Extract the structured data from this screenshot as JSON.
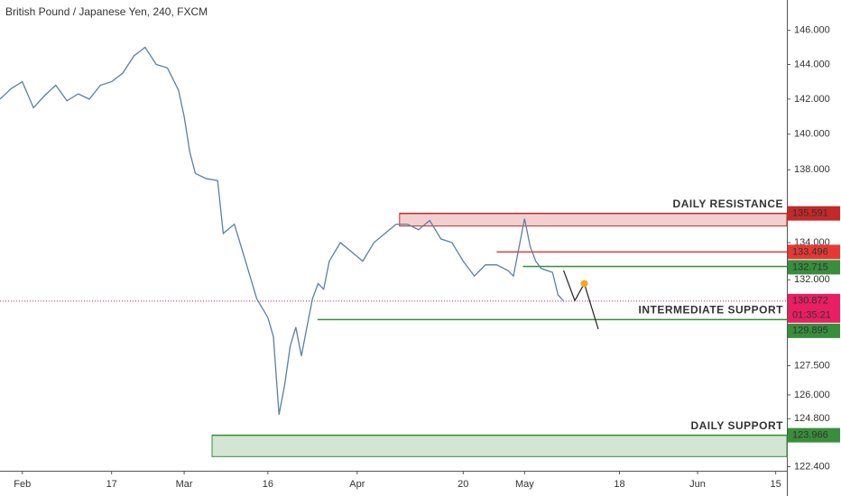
{
  "chart_data": {
    "type": "line",
    "title": "British Pound / Japanese Yen, 240, FXCM",
    "log": true,
    "xlim": [
      -4,
      137
    ],
    "ylim": [
      122.2,
      147.8
    ],
    "yticks": [
      {
        "value": 146,
        "label": "146.000"
      },
      {
        "value": 144,
        "label": "144.000"
      },
      {
        "value": 142,
        "label": "142.000"
      },
      {
        "value": 140,
        "label": "140.000"
      },
      {
        "value": 138,
        "label": "138.000"
      },
      {
        "value": 134,
        "label": "134.000"
      },
      {
        "value": 132,
        "label": "132.000"
      },
      {
        "value": 127.5,
        "label": "127.500"
      },
      {
        "value": 126,
        "label": "126.000"
      },
      {
        "value": 124.8,
        "label": "124.800"
      },
      {
        "value": 122.4,
        "label": "122.400"
      }
    ],
    "xticks": [
      {
        "value": 0,
        "label": "Feb"
      },
      {
        "value": 16,
        "label": "17"
      },
      {
        "value": 29,
        "label": "Mar"
      },
      {
        "value": 44,
        "label": "16"
      },
      {
        "value": 60,
        "label": "Apr"
      },
      {
        "value": 79,
        "label": "20"
      },
      {
        "value": 90,
        "label": "May"
      },
      {
        "value": 107,
        "label": "18"
      },
      {
        "value": 121,
        "label": "Jun"
      },
      {
        "value": 135,
        "label": "15"
      }
    ],
    "color": "#5b7fa6",
    "x": [
      -4,
      -2,
      0,
      2,
      4,
      6,
      8,
      10,
      12,
      14,
      16,
      18,
      20,
      22,
      24,
      26,
      28,
      29,
      30,
      31,
      33,
      35,
      36,
      38,
      40,
      42,
      44,
      45,
      46,
      47,
      48,
      49,
      50,
      51,
      52,
      53,
      54,
      55,
      57,
      59,
      61,
      63,
      65,
      67,
      69,
      71,
      73,
      75,
      77,
      79,
      81,
      83,
      85,
      87,
      88,
      90,
      91,
      92,
      93,
      95,
      96,
      97
    ],
    "values": [
      142.0,
      142.6,
      143.0,
      141.5,
      142.2,
      142.8,
      141.9,
      142.3,
      142.0,
      142.8,
      143.0,
      143.5,
      144.5,
      145.0,
      144.0,
      143.8,
      142.5,
      141.0,
      139.0,
      137.8,
      137.5,
      137.4,
      134.5,
      135.0,
      133.0,
      131.0,
      130.0,
      129.0,
      125.0,
      126.5,
      128.5,
      129.5,
      128.0,
      129.5,
      131.0,
      131.8,
      131.5,
      133.0,
      134.0,
      133.5,
      133.0,
      134.0,
      134.5,
      135.0,
      135.0,
      134.7,
      135.2,
      134.2,
      134.0,
      133.0,
      132.2,
      132.8,
      132.8,
      132.5,
      132.2,
      135.3,
      133.8,
      133.0,
      132.6,
      132.4,
      131.2,
      130.872
    ],
    "levels": [
      {
        "value": 135.591,
        "color": "#c62828",
        "x0": 67.6,
        "zone": 134.9,
        "text": "DAILY RESISTANCE"
      },
      {
        "value": 133.496,
        "color": "#e53935",
        "x0": 85
      },
      {
        "value": 132.715,
        "color": "#388e3c",
        "x0": 89.7
      },
      {
        "value": 129.895,
        "color": "#388e3c",
        "x0": 52.9,
        "text": "INTERMEDIATE SUPPORT"
      },
      {
        "value": 123.966,
        "color": "#388e3c",
        "x0": 34,
        "zone": 122.9,
        "text": "DAILY SUPPORT"
      }
    ],
    "last_price": {
      "value": 130.872,
      "countdown": "01:35:21",
      "color": "#e91e63"
    },
    "projection": {
      "x": [
        97,
        99,
        100.7,
        103.2
      ],
      "values": [
        132.5,
        130.9,
        131.8,
        129.4
      ]
    }
  }
}
